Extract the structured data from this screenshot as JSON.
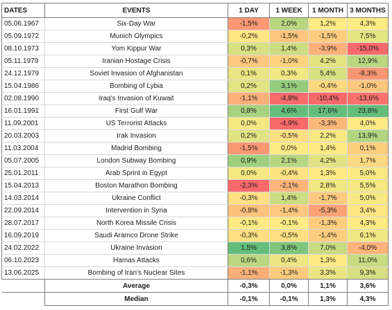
{
  "table": {
    "headers": {
      "dates": "DATES",
      "events": "EVENTS",
      "day": "1 DAY",
      "week": "1 WEEK",
      "month": "1 MONTH",
      "three_months": "3 MONTHS"
    },
    "rows": [
      {
        "date": "05.06.1967",
        "event": "Six-Day War",
        "day": "-1,5%",
        "week": "2,0%",
        "month": "1,2%",
        "three_months": "4,3%"
      },
      {
        "date": "05.09.1972",
        "event": "Munich Olympics",
        "day": "-0,2%",
        "week": "-1,5%",
        "month": "-1,5%",
        "three_months": "7,5%"
      },
      {
        "date": "08.10.1973",
        "event": "Yom Kippur War",
        "day": "0,3%",
        "week": "1,4%",
        "month": "-3,9%",
        "three_months": "-15,0%"
      },
      {
        "date": "05.11.1979",
        "event": "Iranian Hostage Crisis",
        "day": "-0,7%",
        "week": "-1,0%",
        "month": "4,2%",
        "three_months": "12,9%"
      },
      {
        "date": "24.12.1979",
        "event": "Soviet Invasion of Afghanistan",
        "day": "0,1%",
        "week": "0,3%",
        "month": "5,4%",
        "three_months": "-8,3%"
      },
      {
        "date": "15.04.1986",
        "event": "Bombing of Lybia",
        "day": "0,2%",
        "week": "3,1%",
        "month": "-0,4%",
        "three_months": "-1,0%"
      },
      {
        "date": "02.08.1990",
        "event": "Iraq's Invasion of Kuwait",
        "day": "-1,1%",
        "week": "-4,8%",
        "month": "-10,4%",
        "three_months": "-13,6%"
      },
      {
        "date": "16.01.1991",
        "event": "First Gulf War",
        "day": "0,8%",
        "week": "4,6%",
        "month": "17,6%",
        "three_months": "23,8%"
      },
      {
        "date": "11.09.2001",
        "event": "US Terrorist Attacks",
        "day": "0,0%",
        "week": "-4,9%",
        "month": "-3,3%",
        "three_months": "4,0%"
      },
      {
        "date": "20.03.2003",
        "event": "Irak Invasion",
        "day": "0,2%",
        "week": "-0,5%",
        "month": "2,2%",
        "three_months": "13,9%"
      },
      {
        "date": "11.03.2004",
        "event": "Madrid Bombing",
        "day": "-1,5%",
        "week": "0,0%",
        "month": "1,4%",
        "three_months": "0,1%"
      },
      {
        "date": "05.07.2005",
        "event": "London Subway Bombing",
        "day": "0,9%",
        "week": "2,1%",
        "month": "4,2%",
        "three_months": "1,7%"
      },
      {
        "date": "25.01.2011",
        "event": "Arab Sprint in Egypt",
        "day": "0,0%",
        "week": "-0,4%",
        "month": "1,3%",
        "three_months": "5,0%"
      },
      {
        "date": "15.04.2013",
        "event": "Boston Marathon Bombing",
        "day": "-2,3%",
        "week": "-2,1%",
        "month": "2,8%",
        "three_months": "5,5%"
      },
      {
        "date": "14.03.2014",
        "event": "Ukraine Conflict",
        "day": "-0,3%",
        "week": "1,4%",
        "month": "-1,7%",
        "three_months": "5,0%"
      },
      {
        "date": "22.09.2014",
        "event": "Intervention in Syria",
        "day": "-0,8%",
        "week": "-1,4%",
        "month": "-5,3%",
        "three_months": "3,4%"
      },
      {
        "date": "28.07.2017",
        "event": "North Korea Missile Crisis",
        "day": "-0,1%",
        "week": "-0,1%",
        "month": "-1,3%",
        "three_months": "4,3%"
      },
      {
        "date": "16.09.2019",
        "event": "Saudi Aramco Drone Strike",
        "day": "-0,3%",
        "week": "-0,5%",
        "month": "-1,4%",
        "three_months": "6,1%"
      },
      {
        "date": "24.02.2022",
        "event": "Ukraine Invasion",
        "day": "1,5%",
        "week": "3,8%",
        "month": "7,0%",
        "three_months": "-4,0%"
      },
      {
        "date": "06.10.2023",
        "event": "Hamas Attacks",
        "day": "0,6%",
        "week": "0,4%",
        "month": "1,3%",
        "three_months": "11,0%"
      },
      {
        "date": "13.06.2025",
        "event": "Bombing of Iran's Nuclear Sites",
        "day": "-1,1%",
        "week": "-1,3%",
        "month": "3,3%",
        "three_months": "9,3%"
      }
    ],
    "summary": [
      {
        "label": "Average",
        "day": "-0,3%",
        "week": "0,0%",
        "month": "1,1%",
        "three_months": "3,6%"
      },
      {
        "label": "Median",
        "day": "-0,1%",
        "week": "-0,1%",
        "month": "1,3%",
        "three_months": "4,3%"
      }
    ]
  },
  "colors": {
    "negative": "#f8696b",
    "neutral": "#ffeb84",
    "positive": "#63be7b"
  }
}
